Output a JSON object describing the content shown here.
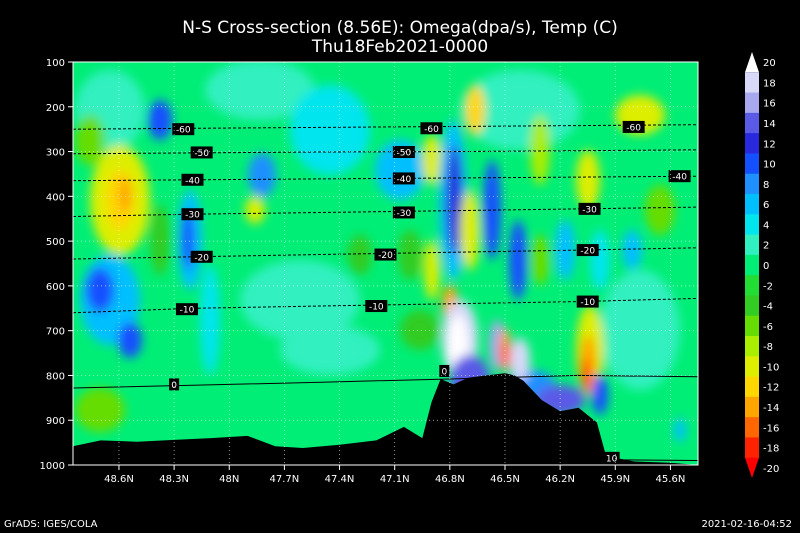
{
  "title_line1": "N-S Cross-section (8.56E): Omega(dpa/s), Temp (C)",
  "title_line2": "Thu18Feb2021-0000",
  "footer_left": "GrADS: IGES/COLA",
  "footer_right": "2021-02-16-04:52",
  "chart_data": {
    "type": "heatmap",
    "title": "N-S Cross-section (8.56E): Omega(dpa/s), Temp (C)",
    "subtitle": "Thu18Feb2021-0000",
    "x_tick_labels": [
      "48.6N",
      "48.3N",
      "48N",
      "47.7N",
      "47.4N",
      "47.1N",
      "46.8N",
      "46.5N",
      "46.2N",
      "45.9N",
      "45.6N"
    ],
    "x_tick_values": [
      48.6,
      48.3,
      48.0,
      47.7,
      47.4,
      47.1,
      46.8,
      46.5,
      46.2,
      45.9,
      45.6
    ],
    "xlim": [
      48.85,
      45.45
    ],
    "y_tick_labels": [
      "100",
      "200",
      "300",
      "400",
      "500",
      "600",
      "700",
      "800",
      "900",
      "1000"
    ],
    "y_tick_values": [
      100,
      200,
      300,
      400,
      500,
      600,
      700,
      800,
      900,
      1000
    ],
    "ylim": [
      1000,
      100
    ],
    "colorbar_levels": [
      20,
      18,
      16,
      14,
      12,
      10,
      8,
      6,
      4,
      2,
      0,
      -2,
      -4,
      -6,
      -8,
      -10,
      -12,
      -14,
      -16,
      -18,
      -20
    ],
    "colorbar_colors": [
      "#ffffff",
      "#d8d8f8",
      "#a8a8f0",
      "#5a5ae6",
      "#2828dc",
      "#1450ff",
      "#1e90ff",
      "#00bfff",
      "#00e5ee",
      "#30f0c0",
      "#00ee76",
      "#22dd33",
      "#33cc22",
      "#66dd00",
      "#aaee00",
      "#ddee00",
      "#ffd700",
      "#ffa500",
      "#ff6600",
      "#ff2200",
      "#ff0000"
    ],
    "temperature_contours": [
      {
        "label": "-60",
        "pressure": [
          250,
          248,
          246,
          244,
          242,
          240
        ]
      },
      {
        "label": "-50",
        "pressure": [
          305,
          303,
          301,
          300,
          298,
          296
        ]
      },
      {
        "label": "-40",
        "pressure": [
          365,
          363,
          361,
          359,
          357,
          355
        ]
      },
      {
        "label": "-30",
        "pressure": [
          445,
          440,
          436,
          432,
          428,
          424
        ]
      },
      {
        "label": "-20",
        "pressure": [
          540,
          535,
          530,
          525,
          520,
          515
        ]
      },
      {
        "label": "-10",
        "pressure": [
          660,
          650,
          645,
          640,
          635,
          628
        ]
      },
      {
        "label": "0",
        "pressure": [
          828,
          822,
          815,
          808,
          800,
          803
        ]
      },
      {
        "label": "10",
        "pressure": [
          985,
          985,
          985,
          985,
          988,
          990
        ]
      }
    ],
    "contour_x": [
      48.85,
      48.2,
      47.5,
      46.8,
      46.1,
      45.45
    ],
    "contour_label_positions": [
      {
        "label": "-60",
        "lat": 48.25,
        "p": 250
      },
      {
        "label": "-60",
        "lat": 46.9,
        "p": 248
      },
      {
        "label": "-60",
        "lat": 45.8,
        "p": 245
      },
      {
        "label": "-50",
        "lat": 48.15,
        "p": 302
      },
      {
        "label": "-50",
        "lat": 47.05,
        "p": 301
      },
      {
        "label": "-40",
        "lat": 48.2,
        "p": 363
      },
      {
        "label": "-40",
        "lat": 47.05,
        "p": 360
      },
      {
        "label": "-40",
        "lat": 45.55,
        "p": 355
      },
      {
        "label": "-30",
        "lat": 48.2,
        "p": 440
      },
      {
        "label": "-30",
        "lat": 47.05,
        "p": 436
      },
      {
        "label": "-30",
        "lat": 46.04,
        "p": 428
      },
      {
        "label": "-20",
        "lat": 48.15,
        "p": 535
      },
      {
        "label": "-20",
        "lat": 47.15,
        "p": 530
      },
      {
        "label": "-20",
        "lat": 46.05,
        "p": 520
      },
      {
        "label": "-10",
        "lat": 48.23,
        "p": 652
      },
      {
        "label": "-10",
        "lat": 47.2,
        "p": 645
      },
      {
        "label": "-10",
        "lat": 46.05,
        "p": 635
      },
      {
        "label": "0",
        "lat": 48.3,
        "p": 820
      },
      {
        "label": "0",
        "lat": 46.83,
        "p": 790
      },
      {
        "label": "10",
        "lat": 45.92,
        "p": 984
      }
    ],
    "terrain_lat": [
      48.85,
      48.7,
      48.5,
      48.3,
      48.1,
      47.9,
      47.75,
      47.6,
      47.4,
      47.2,
      47.05,
      46.95,
      46.9,
      46.85,
      46.78,
      46.7,
      46.6,
      46.5,
      46.45,
      46.4,
      46.3,
      46.2,
      46.1,
      46.0,
      45.95,
      45.8,
      45.6,
      45.45
    ],
    "terrain_p": [
      958,
      945,
      948,
      944,
      940,
      935,
      958,
      962,
      955,
      945,
      915,
      940,
      860,
      808,
      820,
      805,
      800,
      795,
      800,
      812,
      855,
      880,
      872,
      905,
      980,
      992,
      995,
      1000
    ]
  }
}
